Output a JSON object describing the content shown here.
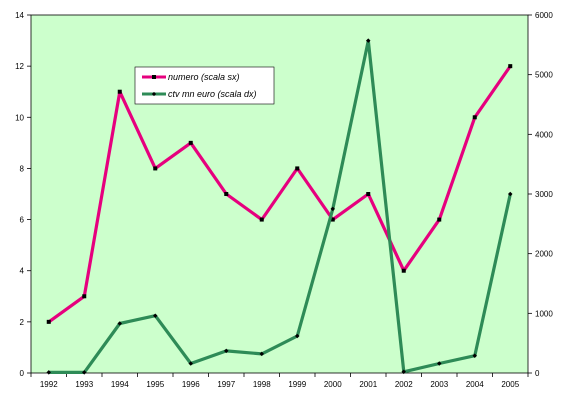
{
  "chart_data": {
    "type": "line",
    "title": "",
    "xlabel": "",
    "ylabel": "",
    "y2label": "",
    "x": [
      "1992",
      "1993",
      "1994",
      "1995",
      "1996",
      "1997",
      "1998",
      "1999",
      "2000",
      "2001",
      "2002",
      "2003",
      "2004",
      "2005"
    ],
    "ylim": [
      0,
      14
    ],
    "y_ticks": [
      "0",
      "2",
      "4",
      "6",
      "8",
      "10",
      "12",
      "14"
    ],
    "y2lim": [
      0,
      6000
    ],
    "y2_ticks": [
      "0",
      "1000",
      "2000",
      "3000",
      "4000",
      "5000",
      "6000"
    ],
    "grid": false,
    "background": "#ccffcc",
    "legend_position": "top-left",
    "series": [
      {
        "name": "numero (scala sx)",
        "axis": "left",
        "color": "#e6007e",
        "marker": "square",
        "values": [
          2,
          3,
          11,
          8,
          9,
          7,
          6,
          8,
          6,
          7,
          4,
          6,
          10,
          12
        ]
      },
      {
        "name": "ctv mn euro (scala dx)",
        "axis": "right",
        "color": "#2e8b57",
        "marker": "diamond",
        "values": [
          10,
          10,
          830,
          960,
          160,
          370,
          320,
          620,
          2750,
          5570,
          20,
          160,
          290,
          3000
        ]
      }
    ]
  }
}
